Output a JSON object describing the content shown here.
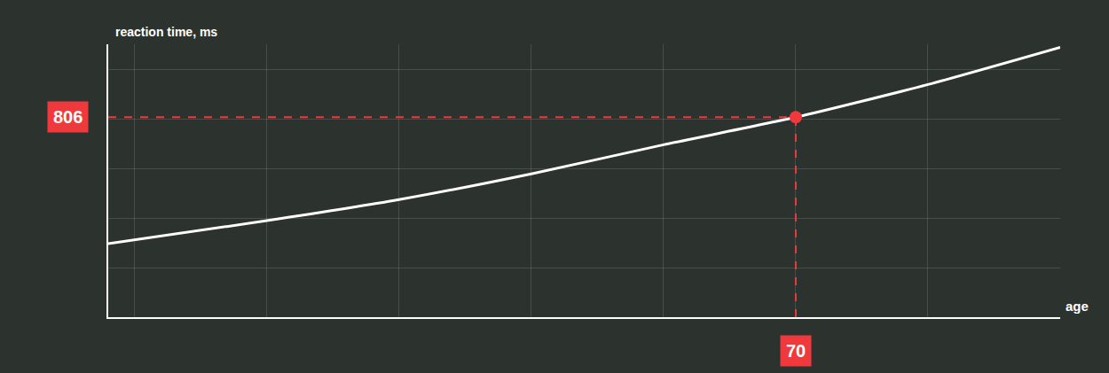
{
  "chart_data": {
    "type": "line",
    "x_title": "age",
    "y_title": "reaction time, ms",
    "x": [
      18,
      30,
      40,
      50,
      60,
      70,
      80,
      90
    ],
    "values": [
      296,
      389,
      474,
      578,
      695,
      806,
      938,
      1088
    ],
    "color": "#ffffff",
    "xlim": [
      18,
      90
    ],
    "xticks": [
      20,
      30,
      40,
      50,
      60,
      70,
      80,
      90
    ],
    "ylim": [
      0,
      1100
    ],
    "yticks": [
      0,
      200,
      400,
      600,
      800,
      1000
    ],
    "grid": true,
    "tick_labels": false,
    "highlight": {
      "x": 70,
      "y": 806,
      "color": "#f0393c"
    }
  }
}
